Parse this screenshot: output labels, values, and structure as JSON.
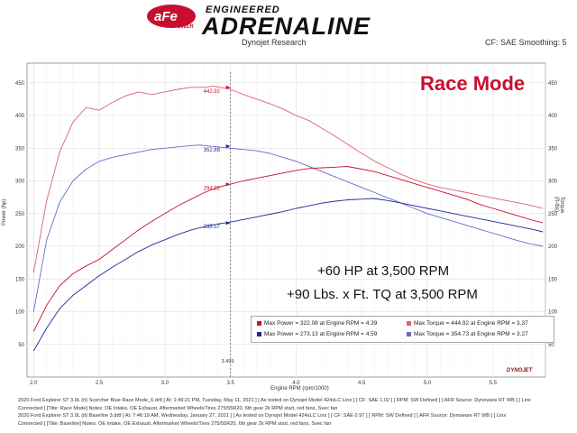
{
  "logo": {
    "brand": "aFe",
    "sub": "POWER",
    "engineered": "ENGINEERED",
    "product": "ADRENALINE"
  },
  "header": {
    "left": "Dynojet Research",
    "right": "CF: SAE Smoothing: 5"
  },
  "race_mode": "Race Mode",
  "annotations": [
    "+60 HP at 3,500 RPM",
    "+90 Lbs. x Ft. TQ at 3,500 RPM"
  ],
  "legend": {
    "mod_power": "Max Power = 322.08 at Engine RPM = 4.39",
    "mod_torque": "Max Torque = 444.92 at Engine RPM = 3.37",
    "base_power": "Max Power = 273.13 at Engine RPM = 4.59",
    "base_torque": "Max Torque = 354.73 at Engine RPM = 3.27"
  },
  "axes": {
    "xlabel": "Engine RPM (rpm/1000)",
    "ylabel_left": "Power (hp)",
    "ylabel_right": "Torque (ft-lbs)"
  },
  "brand_mark": "DYNOJET",
  "footer": [
    "2020 Ford Explorer ST 3.0L (tt) Scorcher Blue Race Mode_6.dr8 [ At: 1:49:21 PM, Tuesday, May 11, 2021 ] [ As tested on Dynojet Model 424xLC Linx ] [ CF: SAE 1.02 ] [ RPM: SW Defined ] [ AFR Source: Dynoware RT WB ] [ Linx",
    "Connected ] [Title: Race Mode]  Notes: OE Intake, OE Exhaust, Aftermarket Wheels/Tires 275/55R20, 6th gear 2k RPM start, red fans, Svec fan",
    "2020 Ford Explorer ST 3.0L (tt) Baseline 3.dr8 [ At: 7:46:19 AM, Wednesday, January 27, 2021 ] [ As tested on Dynojet Model 424xLC Linx ] [ CF: SAE 0.97 ] [ RPM: SW Defined ] [ AFR Source: Dynoware RT WB ] [ Linx",
    "Connected ] [Title: Baseline]  Notes: OE Intake, OE Exhaust, Aftermarket Wheels/Tires 275/55R20, 6th gear 2k RPM start, red fans, Svec fan"
  ],
  "colors": {
    "mod": "#c8102e",
    "mod_tq": "#e06070",
    "base": "#1a2a9a",
    "base_tq": "#6a6ad0",
    "grid": "#d8d8d8"
  },
  "chart_data": {
    "type": "line",
    "x_range": [
      1.95,
      5.9
    ],
    "y_range": [
      0,
      480
    ],
    "x_ticks": [
      2.0,
      2.5,
      3.0,
      3.5,
      4.0,
      4.5,
      5.0,
      5.5
    ],
    "y_ticks": [
      50,
      100,
      150,
      200,
      250,
      300,
      350,
      400,
      450
    ],
    "y_ticks_right": [
      50,
      100,
      150,
      200,
      250,
      300,
      350,
      400,
      450
    ],
    "grid": true,
    "legend_position": "bottom-right",
    "series": [
      {
        "role": "mod_torque",
        "color": "#e06070",
        "points": [
          [
            2.0,
            160
          ],
          [
            2.1,
            270
          ],
          [
            2.2,
            345
          ],
          [
            2.3,
            390
          ],
          [
            2.4,
            412
          ],
          [
            2.5,
            408
          ],
          [
            2.6,
            420
          ],
          [
            2.7,
            430
          ],
          [
            2.8,
            436
          ],
          [
            2.9,
            432
          ],
          [
            3.0,
            436
          ],
          [
            3.1,
            440
          ],
          [
            3.2,
            443
          ],
          [
            3.3,
            443
          ],
          [
            3.37,
            444.92
          ],
          [
            3.5,
            440
          ],
          [
            3.6,
            432
          ],
          [
            3.7,
            425
          ],
          [
            3.8,
            418
          ],
          [
            3.9,
            410
          ],
          [
            4.0,
            400
          ],
          [
            4.1,
            392
          ],
          [
            4.2,
            380
          ],
          [
            4.3,
            368
          ],
          [
            4.4,
            355
          ],
          [
            4.5,
            342
          ],
          [
            4.6,
            330
          ],
          [
            4.7,
            320
          ],
          [
            4.8,
            310
          ],
          [
            4.9,
            302
          ],
          [
            5.0,
            295
          ],
          [
            5.1,
            290
          ],
          [
            5.2,
            286
          ],
          [
            5.3,
            282
          ],
          [
            5.4,
            278
          ],
          [
            5.5,
            274
          ],
          [
            5.6,
            270
          ],
          [
            5.7,
            266
          ],
          [
            5.8,
            262
          ],
          [
            5.88,
            258
          ]
        ]
      },
      {
        "role": "base_torque",
        "color": "#6a6ad0",
        "points": [
          [
            2.0,
            100
          ],
          [
            2.1,
            210
          ],
          [
            2.2,
            268
          ],
          [
            2.3,
            300
          ],
          [
            2.4,
            318
          ],
          [
            2.5,
            330
          ],
          [
            2.6,
            336
          ],
          [
            2.7,
            340
          ],
          [
            2.8,
            344
          ],
          [
            2.9,
            348
          ],
          [
            3.0,
            350
          ],
          [
            3.1,
            352
          ],
          [
            3.2,
            354
          ],
          [
            3.27,
            354.73
          ],
          [
            3.4,
            352
          ],
          [
            3.5,
            350
          ],
          [
            3.6,
            348
          ],
          [
            3.7,
            346
          ],
          [
            3.8,
            342
          ],
          [
            3.9,
            336
          ],
          [
            4.0,
            330
          ],
          [
            4.1,
            322
          ],
          [
            4.2,
            314
          ],
          [
            4.3,
            306
          ],
          [
            4.4,
            298
          ],
          [
            4.5,
            290
          ],
          [
            4.6,
            282
          ],
          [
            4.7,
            274
          ],
          [
            4.8,
            266
          ],
          [
            4.9,
            258
          ],
          [
            5.0,
            250
          ],
          [
            5.1,
            244
          ],
          [
            5.2,
            238
          ],
          [
            5.3,
            232
          ],
          [
            5.4,
            226
          ],
          [
            5.5,
            220
          ],
          [
            5.6,
            214
          ],
          [
            5.7,
            208
          ],
          [
            5.8,
            203
          ],
          [
            5.88,
            200
          ]
        ]
      },
      {
        "role": "mod_power",
        "color": "#c8102e",
        "points": [
          [
            2.0,
            70
          ],
          [
            2.1,
            110
          ],
          [
            2.2,
            140
          ],
          [
            2.3,
            158
          ],
          [
            2.4,
            170
          ],
          [
            2.5,
            180
          ],
          [
            2.6,
            195
          ],
          [
            2.7,
            210
          ],
          [
            2.8,
            225
          ],
          [
            2.9,
            238
          ],
          [
            3.0,
            250
          ],
          [
            3.1,
            262
          ],
          [
            3.2,
            272
          ],
          [
            3.3,
            282
          ],
          [
            3.4,
            290
          ],
          [
            3.5,
            295
          ],
          [
            3.6,
            300
          ],
          [
            3.7,
            304
          ],
          [
            3.8,
            308
          ],
          [
            3.9,
            312
          ],
          [
            4.0,
            316
          ],
          [
            4.1,
            319
          ],
          [
            4.2,
            320
          ],
          [
            4.3,
            321
          ],
          [
            4.39,
            322.08
          ],
          [
            4.5,
            318
          ],
          [
            4.6,
            314
          ],
          [
            4.7,
            308
          ],
          [
            4.8,
            302
          ],
          [
            4.9,
            296
          ],
          [
            5.0,
            290
          ],
          [
            5.1,
            284
          ],
          [
            5.2,
            278
          ],
          [
            5.3,
            272
          ],
          [
            5.4,
            264
          ],
          [
            5.5,
            258
          ],
          [
            5.6,
            252
          ],
          [
            5.7,
            246
          ],
          [
            5.8,
            240
          ],
          [
            5.88,
            236
          ]
        ]
      },
      {
        "role": "base_power",
        "color": "#1a2a9a",
        "points": [
          [
            2.0,
            40
          ],
          [
            2.1,
            75
          ],
          [
            2.2,
            105
          ],
          [
            2.3,
            125
          ],
          [
            2.4,
            140
          ],
          [
            2.5,
            155
          ],
          [
            2.6,
            168
          ],
          [
            2.7,
            180
          ],
          [
            2.8,
            192
          ],
          [
            2.9,
            202
          ],
          [
            3.0,
            210
          ],
          [
            3.1,
            218
          ],
          [
            3.2,
            225
          ],
          [
            3.3,
            230
          ],
          [
            3.4,
            234
          ],
          [
            3.5,
            237
          ],
          [
            3.6,
            241
          ],
          [
            3.7,
            245
          ],
          [
            3.8,
            249
          ],
          [
            3.9,
            253
          ],
          [
            4.0,
            258
          ],
          [
            4.1,
            262
          ],
          [
            4.2,
            266
          ],
          [
            4.3,
            269
          ],
          [
            4.4,
            271
          ],
          [
            4.5,
            272
          ],
          [
            4.59,
            273.13
          ],
          [
            4.7,
            270
          ],
          [
            4.8,
            266
          ],
          [
            4.9,
            262
          ],
          [
            5.0,
            258
          ],
          [
            5.1,
            254
          ],
          [
            5.2,
            250
          ],
          [
            5.3,
            246
          ],
          [
            5.4,
            242
          ],
          [
            5.5,
            238
          ],
          [
            5.6,
            234
          ],
          [
            5.7,
            230
          ],
          [
            5.8,
            226
          ],
          [
            5.88,
            222
          ]
        ]
      }
    ],
    "markers": [
      {
        "label": "442.92",
        "x": 3.5,
        "y": 442.92,
        "color": "#c8102e"
      },
      {
        "label": "352.88",
        "x": 3.5,
        "y": 352.88,
        "color": "#1a2a9a"
      },
      {
        "label": "294.82",
        "x": 3.5,
        "y": 294.82,
        "color": "#c8102e"
      },
      {
        "label": "235.57",
        "x": 3.5,
        "y": 235.57,
        "color": "#1a2a9a"
      }
    ],
    "cursor": {
      "x": 3.5,
      "label": "3.499"
    }
  }
}
